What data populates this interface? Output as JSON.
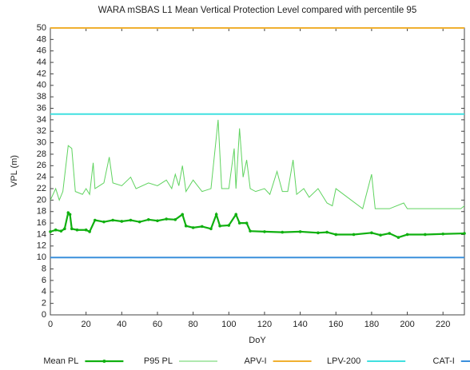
{
  "chart_data": {
    "type": "line",
    "title": "WARA mSBAS L1 Mean Vertical Protection Level compared with percentile 95",
    "xlabel": "DoY",
    "ylabel": "VPL (m)",
    "xlim": [
      0,
      232
    ],
    "ylim": [
      0,
      50
    ],
    "xticks": [
      0,
      20,
      40,
      60,
      80,
      100,
      120,
      140,
      160,
      180,
      200,
      220
    ],
    "yticks": [
      0,
      2,
      4,
      6,
      8,
      10,
      12,
      14,
      16,
      18,
      20,
      22,
      24,
      26,
      28,
      30,
      32,
      34,
      36,
      38,
      40,
      42,
      44,
      46,
      48,
      50
    ],
    "grid": false,
    "legend": "bottom",
    "series": [
      {
        "name": "Mean PL",
        "color": "#10b010",
        "markers": true,
        "x": [
          0,
          3,
          6,
          8,
          10,
          11,
          12,
          15,
          20,
          22,
          25,
          30,
          35,
          40,
          45,
          50,
          55,
          60,
          65,
          70,
          74,
          76,
          80,
          85,
          90,
          93,
          95,
          100,
          104,
          106,
          110,
          112,
          120,
          130,
          140,
          150,
          155,
          160,
          170,
          180,
          185,
          190,
          195,
          200,
          210,
          220,
          232
        ],
        "values": [
          14.5,
          14.8,
          14.6,
          15,
          17.8,
          17.5,
          15,
          14.8,
          14.8,
          14.5,
          16.5,
          16.2,
          16.5,
          16.3,
          16.5,
          16.2,
          16.6,
          16.4,
          16.7,
          16.6,
          17.5,
          15.5,
          15.2,
          15.4,
          15,
          17.5,
          15.5,
          15.6,
          17.5,
          16,
          16,
          14.6,
          14.5,
          14.4,
          14.5,
          14.3,
          14.4,
          14,
          14,
          14.3,
          13.9,
          14.2,
          13.5,
          14,
          14,
          14.1,
          14.2
        ]
      },
      {
        "name": "P95 PL",
        "color": "#5fd35f",
        "markers": false,
        "x": [
          0,
          3,
          5,
          7,
          10,
          12,
          14,
          18,
          20,
          22,
          24,
          25,
          30,
          33,
          35,
          40,
          45,
          48,
          55,
          60,
          65,
          68,
          70,
          72,
          74,
          76,
          80,
          85,
          90,
          94,
          96,
          100,
          103,
          104,
          106,
          108,
          110,
          112,
          115,
          120,
          123,
          127,
          130,
          133,
          136,
          138,
          142,
          145,
          150,
          155,
          158,
          160,
          175,
          180,
          182,
          190,
          198,
          200,
          230,
          232
        ],
        "values": [
          20,
          22,
          20,
          21.5,
          29.5,
          29,
          21.5,
          21,
          22,
          21,
          26.5,
          22,
          23,
          27.5,
          23,
          22.5,
          24,
          22,
          23,
          22.5,
          23.5,
          22,
          24.5,
          22.5,
          26,
          21.5,
          23.5,
          21.5,
          22,
          34,
          22,
          22,
          29,
          22,
          32.5,
          24,
          27,
          22,
          21.5,
          22,
          21,
          25,
          21.5,
          21.5,
          27,
          21,
          22,
          20.5,
          22,
          19.5,
          19,
          22,
          18.5,
          24.5,
          18.5,
          18.5,
          19.5,
          18.5,
          18.5,
          19
        ]
      },
      {
        "name": "APV-I",
        "color": "#f0b030",
        "markers": false,
        "x": [
          0,
          232
        ],
        "values": [
          50,
          50
        ]
      },
      {
        "name": "LPV-200",
        "color": "#40e0e0",
        "markers": false,
        "x": [
          0,
          232
        ],
        "values": [
          35,
          35
        ]
      },
      {
        "name": "CAT-I",
        "color": "#3a8fdc",
        "markers": false,
        "x": [
          0,
          232
        ],
        "values": [
          10,
          10
        ]
      }
    ]
  }
}
